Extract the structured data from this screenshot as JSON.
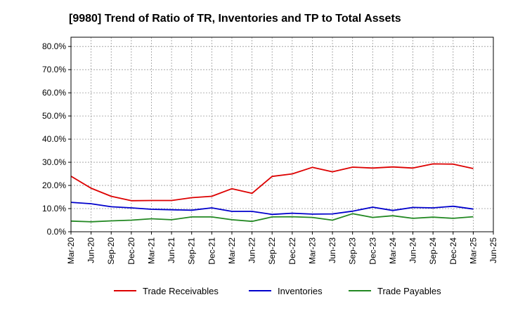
{
  "chart_data": {
    "type": "line",
    "title": "[9980]  Trend of Ratio of TR, Inventories and TP to Total Assets",
    "xlabel": "",
    "ylabel": "",
    "x_ticks": [
      "Mar-20",
      "Jun-20",
      "Sep-20",
      "Dec-20",
      "Mar-21",
      "Jun-21",
      "Sep-21",
      "Dec-21",
      "Mar-22",
      "Jun-22",
      "Sep-22",
      "Dec-22",
      "Mar-23",
      "Jun-23",
      "Sep-23",
      "Dec-23",
      "Mar-24",
      "Jun-24",
      "Sep-24",
      "Dec-24",
      "Mar-25",
      "Jun-25"
    ],
    "categories": [
      "Mar-20",
      "Jun-20",
      "Sep-20",
      "Dec-20",
      "Mar-21",
      "Jun-21",
      "Sep-21",
      "Dec-21",
      "Mar-22",
      "Jun-22",
      "Sep-22",
      "Dec-22",
      "Mar-23",
      "Jun-23",
      "Sep-23",
      "Dec-23",
      "Mar-24",
      "Jun-24",
      "Sep-24",
      "Dec-24",
      "Mar-25"
    ],
    "y_ticks": [
      "0.0%",
      "10.0%",
      "20.0%",
      "30.0%",
      "40.0%",
      "50.0%",
      "60.0%",
      "70.0%",
      "80.0%"
    ],
    "ylim": [
      0,
      84
    ],
    "grid": true,
    "legend_position": "bottom",
    "series": [
      {
        "name": "Trade Receivables",
        "color": "#dd0000",
        "values": [
          24.0,
          18.8,
          15.3,
          13.4,
          13.5,
          13.5,
          14.7,
          15.3,
          18.6,
          16.6,
          23.9,
          25.0,
          27.8,
          25.9,
          27.9,
          27.5,
          28.0,
          27.5,
          29.3,
          29.2,
          27.3
        ]
      },
      {
        "name": "Inventories",
        "color": "#0000cc",
        "values": [
          12.7,
          12.1,
          10.8,
          10.3,
          9.7,
          9.5,
          9.3,
          10.3,
          8.8,
          8.8,
          7.5,
          8.0,
          7.6,
          7.7,
          8.9,
          10.6,
          9.2,
          10.5,
          10.3,
          11.0,
          9.8
        ]
      },
      {
        "name": "Trade Payables",
        "color": "#228822",
        "values": [
          4.6,
          4.3,
          4.7,
          5.0,
          5.6,
          5.2,
          6.4,
          6.4,
          5.2,
          4.5,
          6.4,
          6.5,
          6.2,
          5.0,
          7.8,
          6.2,
          6.9,
          5.8,
          6.3,
          5.8,
          6.5
        ]
      }
    ]
  }
}
